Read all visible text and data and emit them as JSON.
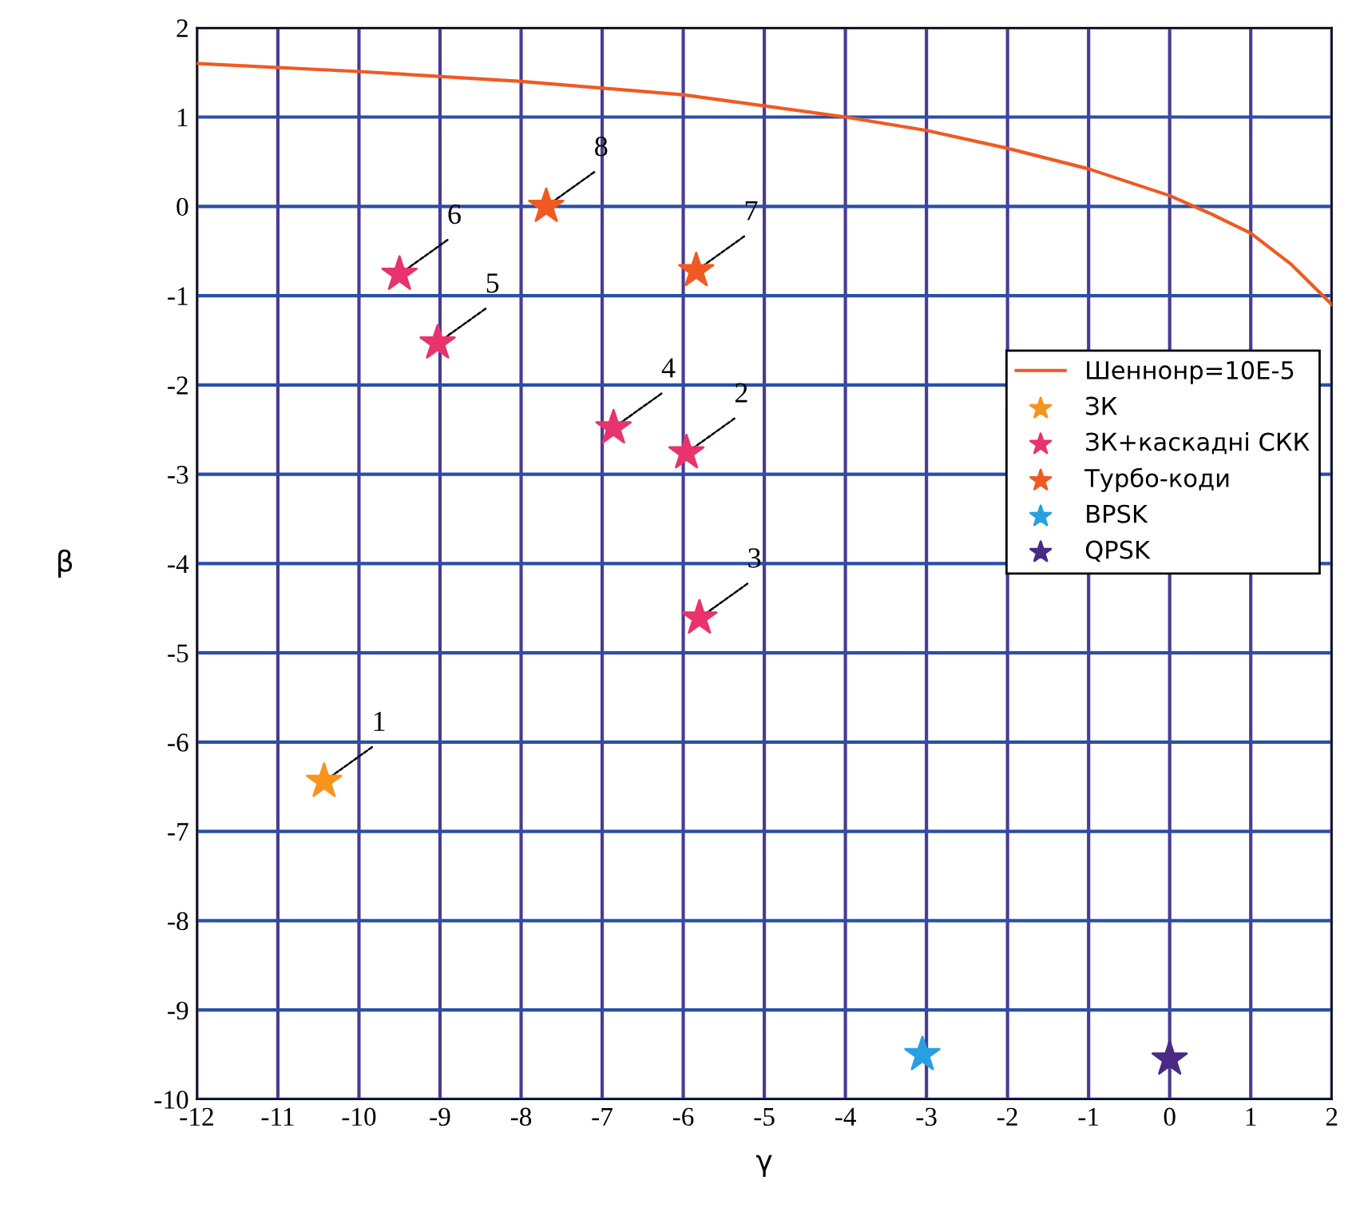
{
  "chart_data": {
    "type": "scatter",
    "xlabel": "γ",
    "ylabel": "β",
    "xlim": [
      -12,
      2
    ],
    "ylim": [
      -10,
      2
    ],
    "xticks": [
      -12,
      -11,
      -10,
      -9,
      -8,
      -7,
      -6,
      -5,
      -4,
      -3,
      -2,
      -1,
      0,
      1,
      2
    ],
    "yticks": [
      -10,
      -9,
      -8,
      -7,
      -6,
      -5,
      -4,
      -3,
      -2,
      -1,
      0,
      1,
      2
    ],
    "grid": true,
    "legend": "right",
    "marker": "star",
    "series": [
      {
        "name": "Шеннонр=10E-5",
        "type": "line",
        "color": "#f05a22",
        "marker": "none",
        "x": [
          -12,
          -10,
          -8,
          -6,
          -4,
          -3,
          -2,
          -1,
          0,
          0.5,
          1,
          1.5,
          2
        ],
        "values": [
          1.6,
          1.51,
          1.4,
          1.25,
          1.0,
          0.85,
          0.65,
          0.42,
          0.12,
          -0.08,
          -0.3,
          -0.65,
          -1.1
        ]
      },
      {
        "name": "ЗК",
        "color": "#f7941d",
        "x": [
          -10.43
        ],
        "values": [
          -6.44
        ]
      },
      {
        "name": "ЗК+каскадні СКК",
        "color": "#e8336d",
        "x": [
          -5.96,
          -5.8,
          -6.86,
          -9.03,
          -9.5
        ],
        "values": [
          -2.76,
          -4.61,
          -2.48,
          -1.53,
          -0.76
        ]
      },
      {
        "name": "Турбо-коди",
        "color": "#f05a22",
        "x": [
          -5.84,
          -7.69
        ],
        "values": [
          -0.72,
          0.0
        ]
      },
      {
        "name": "BPSK",
        "color": "#2a9fe0",
        "x": [
          -3.05
        ],
        "values": [
          -9.5
        ]
      },
      {
        "name": "QPSK",
        "color": "#4b2a86",
        "x": [
          0.0
        ],
        "values": [
          -9.55
        ]
      }
    ],
    "annotations": [
      {
        "text": "1",
        "x": -10.43,
        "y": -6.44
      },
      {
        "text": "2",
        "x": -5.96,
        "y": -2.76
      },
      {
        "text": "3",
        "x": -5.8,
        "y": -4.61
      },
      {
        "text": "4",
        "x": -6.86,
        "y": -2.48
      },
      {
        "text": "5",
        "x": -9.03,
        "y": -1.53
      },
      {
        "text": "6",
        "x": -9.5,
        "y": -0.76
      },
      {
        "text": "7",
        "x": -5.84,
        "y": -0.72
      },
      {
        "text": "8",
        "x": -7.69,
        "y": 0.0
      }
    ]
  }
}
